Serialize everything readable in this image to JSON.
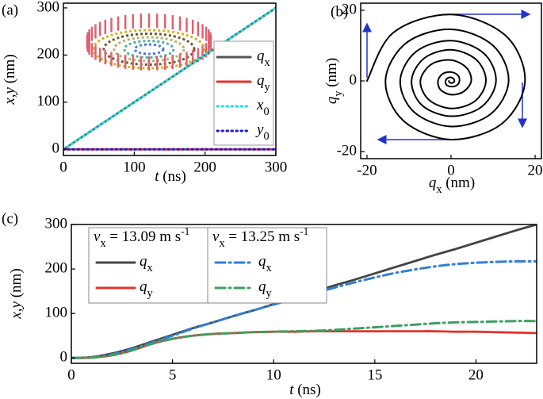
{
  "chart_data": [
    {
      "type": "line",
      "label": "(a)",
      "xlabel": "t (ns)",
      "ylabel": "x,y (nm)",
      "x": [
        0,
        300
      ],
      "xlim": [
        0,
        300
      ],
      "ylim": [
        -13,
        310
      ],
      "xticks": [
        0,
        100,
        200,
        300
      ],
      "yticks": [
        0,
        100,
        200,
        300
      ],
      "legend": "right",
      "series": [
        {
          "name": "qx",
          "color": "#555555",
          "style": "solid",
          "values": [
            0,
            300
          ]
        },
        {
          "name": "qy",
          "color": "#e8302a",
          "style": "solid",
          "values": [
            0,
            0
          ]
        },
        {
          "name": "x0",
          "color": "#22dddd",
          "style": "dotted",
          "values": [
            0,
            300
          ]
        },
        {
          "name": "y0",
          "color": "#1c1cd0",
          "style": "dotted",
          "values": [
            0,
            0
          ]
        }
      ]
    },
    {
      "type": "line",
      "label": "(b)",
      "xlabel": "qx (nm)",
      "ylabel": "qy (nm)",
      "xlim": [
        -21.5,
        21.5
      ],
      "ylim": [
        -22,
        22
      ],
      "xticks": [
        -20,
        0,
        20
      ],
      "yticks": [
        -20,
        0,
        20
      ],
      "series": [
        {
          "color": "#000000",
          "style": "solid",
          "x": [
            -20,
            -13.7,
            0,
            12.9,
            17.6,
            12.1,
            0,
            -11.3,
            -15.6,
            -10.7,
            0,
            10.0,
            13.7,
            9.4,
            0,
            -8.8,
            -12.1,
            -8.3,
            0,
            7.8,
            10.7,
            7.3,
            0,
            -6.9,
            -9.4,
            -6.4,
            0,
            6.0,
            8.3,
            5.7,
            0,
            -5.3,
            -7.3,
            -4.7,
            0,
            3.7,
            4.8,
            3.0,
            0,
            -2.5,
            -3.1,
            -2.0,
            0,
            1.6,
            2.0,
            1.3,
            0,
            -1.1,
            -1.3,
            -0.8,
            0,
            0.6,
            0.8,
            0.5,
            0,
            -0.4,
            -0.5
          ],
          "values": [
            0,
            13.7,
            18.8,
            12.9,
            0,
            -12.1,
            -16.6,
            -11.3,
            0,
            10.7,
            14.6,
            10.0,
            0,
            -9.4,
            -12.9,
            -8.8,
            0,
            8.3,
            11.4,
            7.8,
            0,
            -7.3,
            -10.0,
            -6.9,
            0,
            6.4,
            8.8,
            6.0,
            0,
            -5.7,
            -7.8,
            -5.3,
            0,
            4.7,
            5.9,
            3.7,
            0,
            -3.0,
            -3.9,
            -2.5,
            0,
            2.0,
            2.5,
            1.6,
            0,
            -1.3,
            -1.6,
            -1.1,
            0,
            0.8,
            1.0,
            0.6,
            0,
            -0.5,
            -0.6,
            -0.4,
            0
          ]
        }
      ]
    },
    {
      "type": "line",
      "label": "(c)",
      "xlabel": "t (ns)",
      "ylabel": "x,y (nm)",
      "x": [
        0,
        1,
        2,
        3,
        4,
        5,
        6,
        7,
        8,
        9,
        10,
        11,
        12,
        13,
        14,
        15,
        16,
        17,
        18,
        19,
        20,
        21,
        22,
        23
      ],
      "xlim": [
        0,
        23
      ],
      "ylim": [
        -12,
        300
      ],
      "xticks": [
        0,
        5,
        10,
        15,
        20
      ],
      "yticks": [
        0,
        100,
        200,
        300
      ],
      "legend_titles": [
        "vx = 13.09 m s-1",
        "vx = 13.25 m s-1"
      ],
      "series": [
        {
          "name": "qx",
          "color": "#444444",
          "style": "solid",
          "values": [
            0,
            2,
            10,
            22,
            37,
            52,
            67,
            80,
            94,
            107,
            121,
            135,
            149,
            163,
            176,
            190,
            204,
            218,
            232,
            245,
            259,
            273,
            287,
            300
          ]
        },
        {
          "name": "qy",
          "color": "#e8302a",
          "style": "solid",
          "values": [
            0,
            1,
            6,
            17,
            32,
            43,
            50,
            54,
            56,
            58,
            59,
            59,
            60,
            60,
            60,
            60,
            60,
            60,
            60,
            59,
            59,
            58,
            57,
            56
          ]
        },
        {
          "name": "qx",
          "color": "#2f7fd8",
          "style": "dashdot",
          "values": [
            0,
            1,
            8,
            20,
            35,
            50,
            66,
            80,
            94,
            107,
            120,
            133,
            145,
            158,
            170,
            181,
            191,
            199,
            206,
            211,
            214,
            216,
            217,
            217
          ]
        },
        {
          "name": "qy",
          "color": "#3ca060",
          "style": "dashdot",
          "values": [
            0,
            1,
            6,
            17,
            32,
            43,
            50,
            54,
            56,
            58,
            59,
            60,
            61,
            63,
            66,
            69,
            72,
            75,
            78,
            80,
            81,
            82,
            83,
            83
          ]
        }
      ]
    }
  ]
}
